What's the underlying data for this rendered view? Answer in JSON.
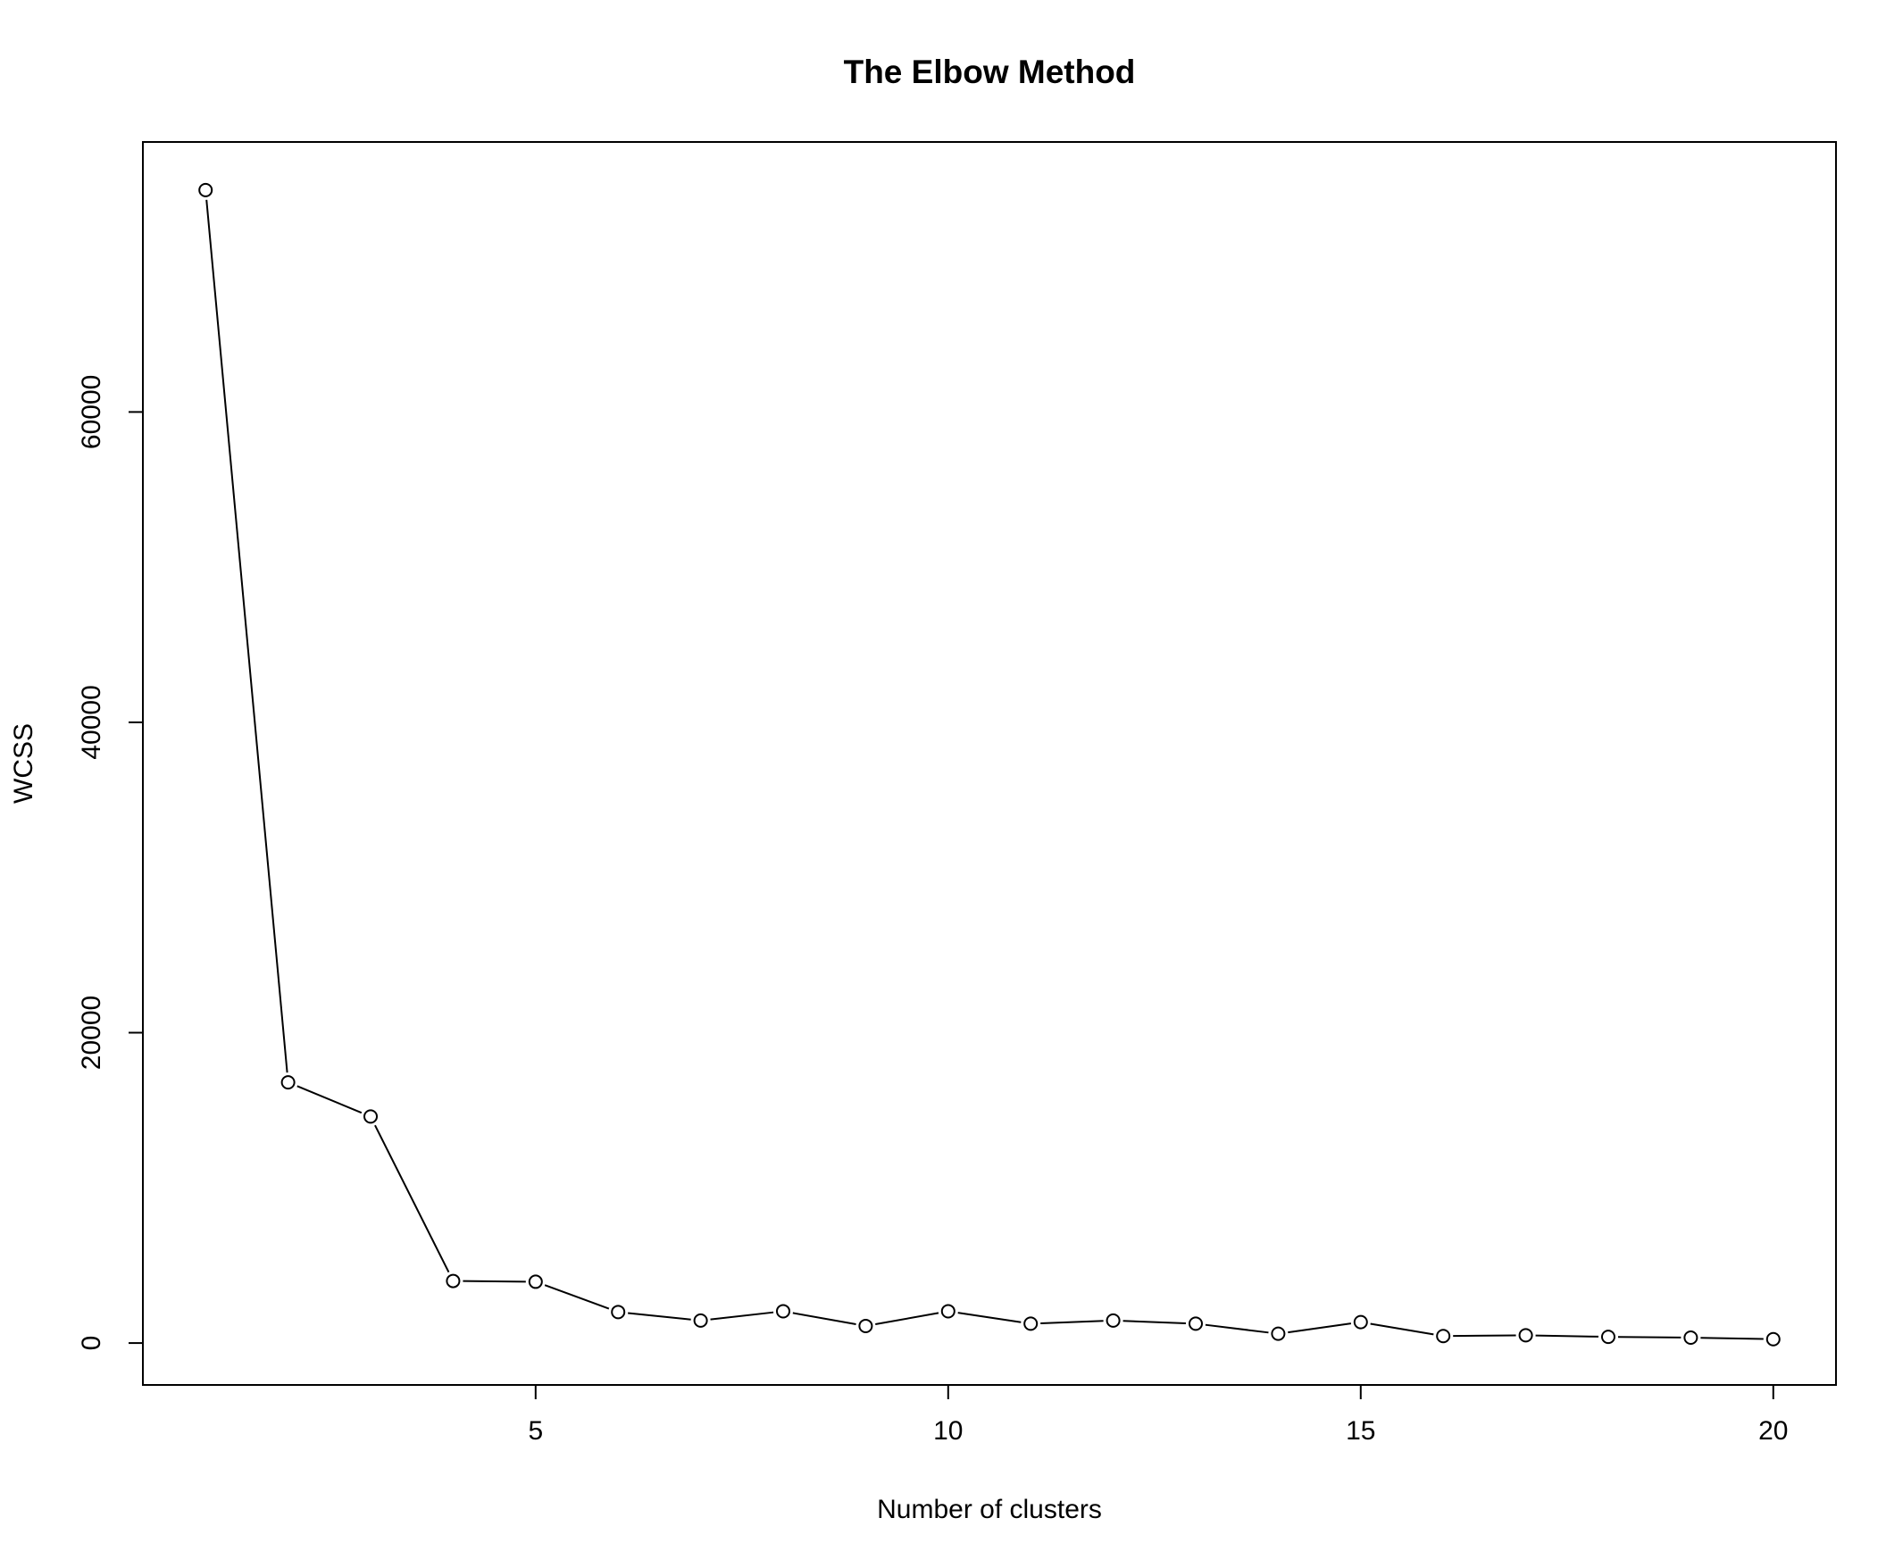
{
  "chart_data": {
    "type": "line",
    "title": "The Elbow Method",
    "xlabel": "Number of clusters",
    "ylabel": "WCSS",
    "x": [
      1,
      2,
      3,
      4,
      5,
      6,
      7,
      8,
      9,
      10,
      11,
      12,
      13,
      14,
      15,
      16,
      17,
      18,
      19,
      20
    ],
    "values": [
      74300,
      16800,
      14600,
      4000,
      3950,
      2000,
      1450,
      2050,
      1100,
      2050,
      1250,
      1450,
      1250,
      600,
      1350,
      450,
      500,
      400,
      350,
      250
    ],
    "xlim": [
      0.24,
      20.76
    ],
    "ylim": [
      -2700,
      77400
    ],
    "xticks": [
      5,
      10,
      15,
      20
    ],
    "xtick_labels": [
      "5",
      "10",
      "15",
      "20"
    ],
    "yticks": [
      0,
      20000,
      40000,
      60000
    ],
    "ytick_labels": [
      "0",
      "20000",
      "40000",
      "60000"
    ],
    "marker": "open-circle",
    "grid": false,
    "legend": "none",
    "line_color": "#000000"
  }
}
